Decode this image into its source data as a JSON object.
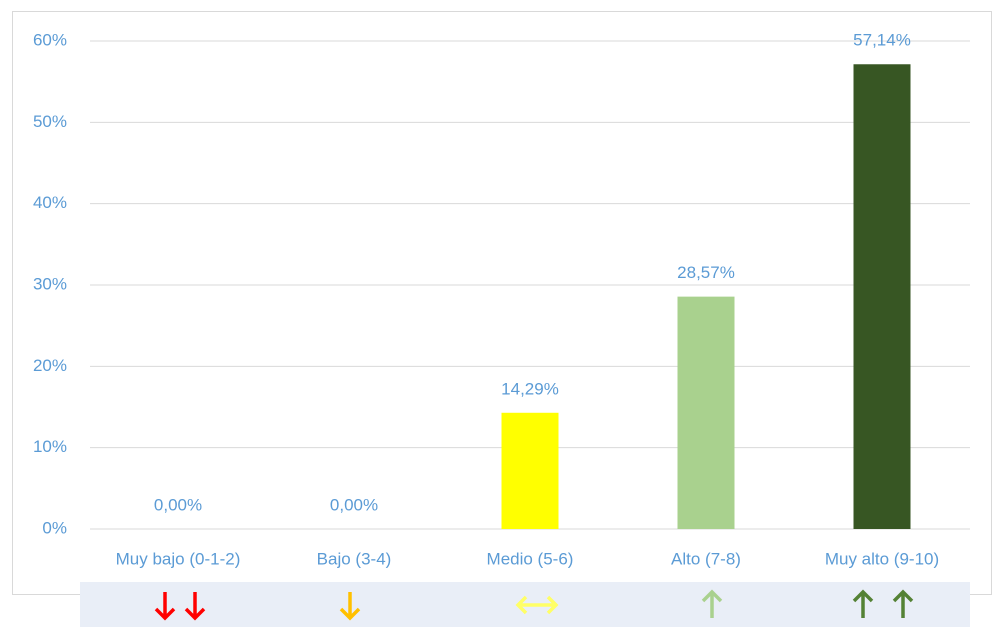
{
  "chart_data": {
    "type": "bar",
    "categories": [
      "Muy bajo (0-1-2)",
      "Bajo (3-4)",
      "Medio (5-6)",
      "Alto (7-8)",
      "Muy alto (9-10)"
    ],
    "values": [
      0,
      0,
      14.29,
      28.57,
      57.14
    ],
    "value_labels": [
      "0,00%",
      "0,00%",
      "14,29%",
      "28,57%",
      "57,14%"
    ],
    "colors": [
      "#ff0000",
      "#ffc000",
      "#ffff00",
      "#a9d18e",
      "#375623"
    ],
    "ylim": [
      0,
      60
    ],
    "yticks": [
      {
        "value": 0,
        "label": "0%"
      },
      {
        "value": 10,
        "label": "10%"
      },
      {
        "value": 20,
        "label": "20%"
      },
      {
        "value": 30,
        "label": "30%"
      },
      {
        "value": 40,
        "label": "40%"
      },
      {
        "value": 50,
        "label": "50%"
      },
      {
        "value": 60,
        "label": "60%"
      }
    ],
    "grid": true
  }
}
